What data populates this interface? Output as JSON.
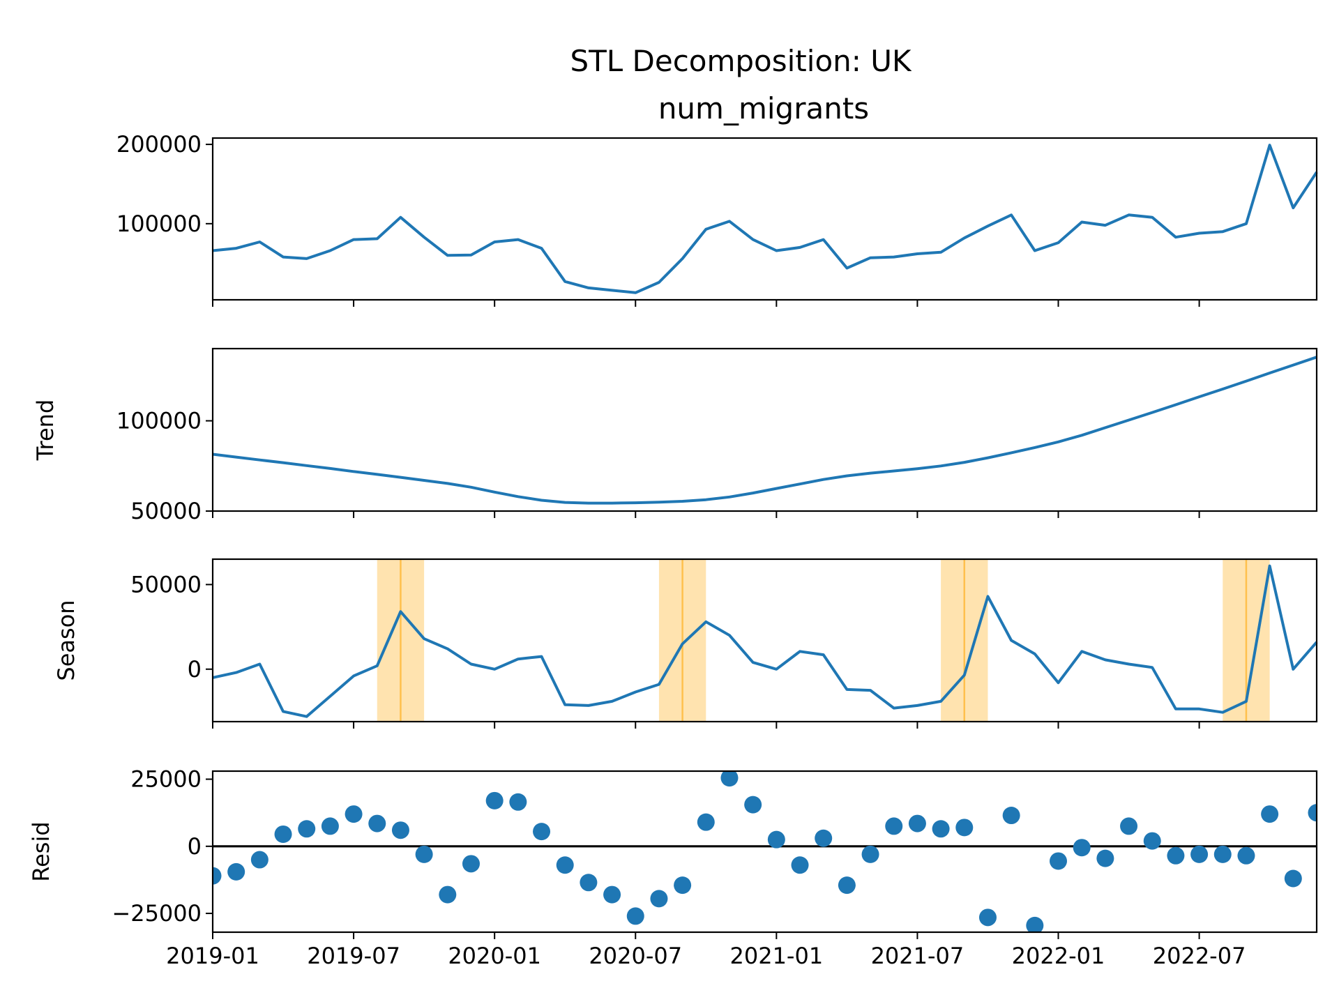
{
  "chart_data": {
    "type": "line",
    "title": "STL Decomposition: UK",
    "subtitle": "num_migrants",
    "x": [
      "2019-01",
      "2019-02",
      "2019-03",
      "2019-04",
      "2019-05",
      "2019-06",
      "2019-07",
      "2019-08",
      "2019-09",
      "2019-10",
      "2019-11",
      "2019-12",
      "2020-01",
      "2020-02",
      "2020-03",
      "2020-04",
      "2020-05",
      "2020-06",
      "2020-07",
      "2020-08",
      "2020-09",
      "2020-10",
      "2020-11",
      "2020-12",
      "2021-01",
      "2021-02",
      "2021-03",
      "2021-04",
      "2021-05",
      "2021-06",
      "2021-07",
      "2021-08",
      "2021-09",
      "2021-10",
      "2021-11",
      "2021-12",
      "2022-01",
      "2022-02",
      "2022-03",
      "2022-04",
      "2022-05",
      "2022-06",
      "2022-07",
      "2022-08",
      "2022-09",
      "2022-10",
      "2022-11",
      "2022-12"
    ],
    "x_ticks": [
      "2019-01",
      "2019-07",
      "2020-01",
      "2020-07",
      "2021-01",
      "2021-07",
      "2022-01",
      "2022-07"
    ],
    "panels": [
      {
        "name": "observed",
        "ylabel": "",
        "kind": "line",
        "ylim": [
          4000,
          208000
        ],
        "yticks": [
          "100000",
          "200000"
        ],
        "values": [
          66000,
          69000,
          77000,
          58000,
          56000,
          66000,
          80000,
          81000,
          108000,
          83000,
          60000,
          60500,
          77000,
          80000,
          69000,
          27000,
          19000,
          16000,
          13000,
          26000,
          56000,
          93000,
          103000,
          80000,
          66000,
          70000,
          80000,
          44000,
          57000,
          58000,
          62000,
          64000,
          82000,
          97000,
          111000,
          66000,
          76000,
          102000,
          98000,
          111000,
          108000,
          83000,
          88000,
          90000,
          100000,
          199000,
          120000,
          165000
        ]
      },
      {
        "name": "trend",
        "ylabel": "Trend",
        "kind": "line",
        "ylim": [
          50000,
          140000
        ],
        "yticks": [
          "50000",
          "100000"
        ],
        "values": [
          81500,
          79900,
          78300,
          76800,
          75200,
          73600,
          71900,
          70300,
          68700,
          67000,
          65300,
          63200,
          60500,
          58000,
          56000,
          54800,
          54400,
          54400,
          54600,
          54900,
          55400,
          56300,
          57800,
          60000,
          62500,
          65000,
          67500,
          69500,
          71000,
          72200,
          73500,
          75000,
          77000,
          79500,
          82300,
          85200,
          88300,
          92000,
          96200,
          100400,
          104600,
          108900,
          113300,
          117600,
          122000,
          126500,
          130900,
          135300
        ]
      },
      {
        "name": "season",
        "ylabel": "Season",
        "kind": "line",
        "ylim": [
          -31000,
          65000
        ],
        "yticks": [
          "0",
          "50000"
        ],
        "values": [
          -5000,
          -2000,
          3000,
          -25000,
          -28000,
          -16000,
          -4000,
          2000,
          34000,
          18000,
          12000,
          3000,
          0,
          6000,
          7500,
          -21000,
          -21500,
          -19000,
          -13500,
          -9000,
          15000,
          28000,
          20000,
          4000,
          0,
          10500,
          8500,
          -12000,
          -12500,
          -23000,
          -21500,
          -19000,
          -3500,
          43000,
          17000,
          9000,
          -8000,
          10500,
          5500,
          3000,
          1000,
          -23500,
          -23500,
          -25500,
          -19000,
          61000,
          0,
          16000
        ],
        "highlighted_months": [
          "2019-09",
          "2020-09",
          "2021-09",
          "2022-09"
        ],
        "highlight_color": "#ffc04d"
      },
      {
        "name": "resid",
        "ylabel": "Resid",
        "kind": "scatter",
        "ylim": [
          -32000,
          28000
        ],
        "yticks": [
          "−25000",
          "0",
          "25000"
        ],
        "zero_line": true,
        "values": [
          -11000,
          -9500,
          -5000,
          4500,
          6500,
          7500,
          12000,
          8500,
          6000,
          -3000,
          -18000,
          -6500,
          17000,
          16500,
          5500,
          -7000,
          -13500,
          -18000,
          -26000,
          -19500,
          -14500,
          9000,
          25500,
          15500,
          2500,
          -7000,
          3000,
          -14500,
          -3000,
          7500,
          8500,
          6500,
          7000,
          -26500,
          11500,
          -29500,
          -5500,
          -500,
          -4500,
          7500,
          2000,
          -3500,
          -3000,
          -3000,
          -3500,
          12000,
          -12000,
          12500
        ]
      }
    ]
  }
}
